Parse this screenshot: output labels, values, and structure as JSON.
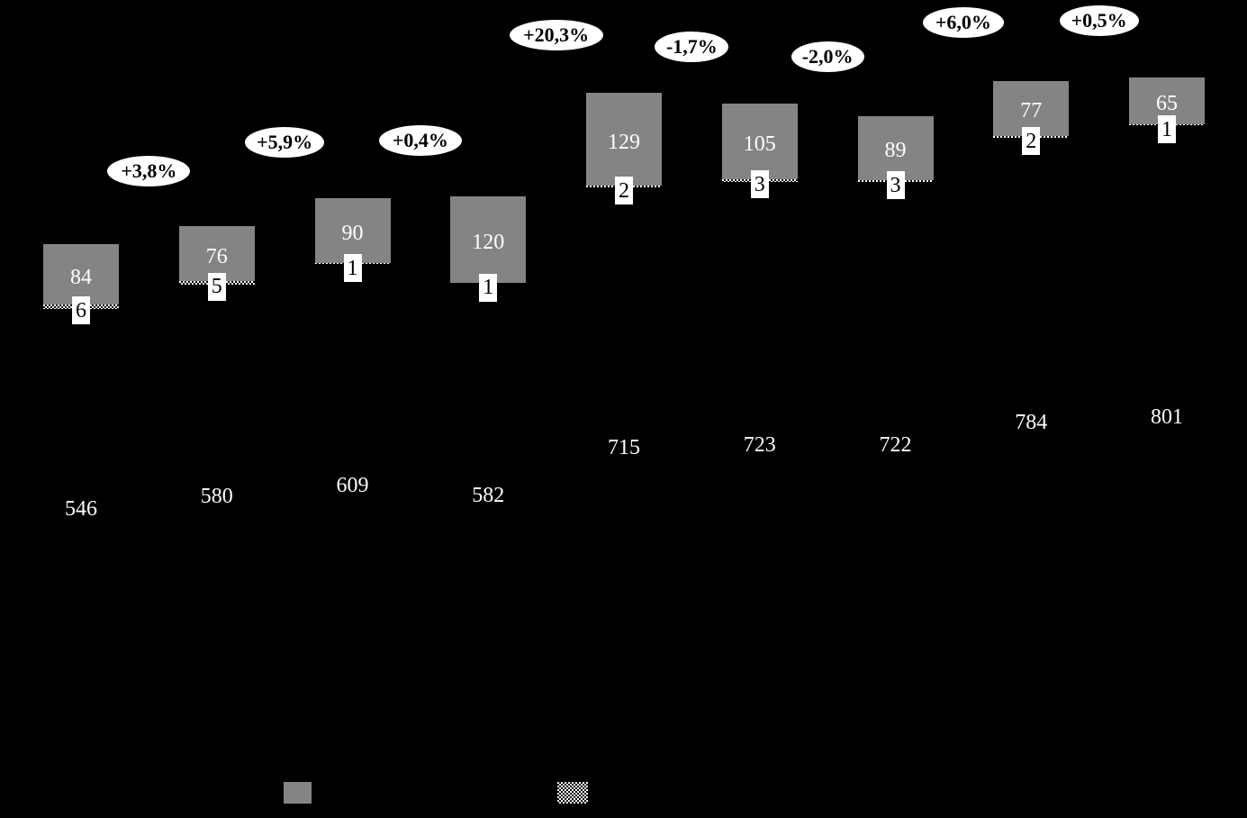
{
  "chart_data": {
    "type": "bar",
    "stacked": true,
    "bar_count": 9,
    "axes_visible": false,
    "grid": false,
    "legend_position": "bottom",
    "background_color": "#000000",
    "series": [
      {
        "name": "base-segment",
        "style": "solid-black",
        "label_color": "#ffffff",
        "values": [
          546,
          580,
          609,
          582,
          715,
          723,
          722,
          784,
          801
        ]
      },
      {
        "name": "hatched-segment",
        "style": "checkerboard-black-white",
        "label_color": "#000000",
        "values": [
          6,
          5,
          1,
          1,
          2,
          3,
          3,
          2,
          1
        ]
      },
      {
        "name": "gray-segment",
        "style": "solid-gray",
        "label_color": "#ffffff",
        "values": [
          84,
          76,
          90,
          120,
          129,
          105,
          89,
          77,
          65
        ]
      }
    ],
    "growth_badges": [
      "+3,8%",
      "+5,9%",
      "+0,4%",
      "+20,3%",
      "-1,7%",
      "-2,0%",
      "+6,0%",
      "+0,5%"
    ]
  },
  "legend": {
    "swatches": [
      {
        "name": "gray-series-swatch",
        "style": "solid-gray"
      },
      {
        "name": "hatched-series-swatch",
        "style": "checkerboard-black-white"
      }
    ]
  },
  "colors": {
    "background": "#000000",
    "bar_gray": "#848484",
    "label_white": "#ffffff",
    "badge_background": "#ffffff",
    "badge_text": "#000000"
  }
}
